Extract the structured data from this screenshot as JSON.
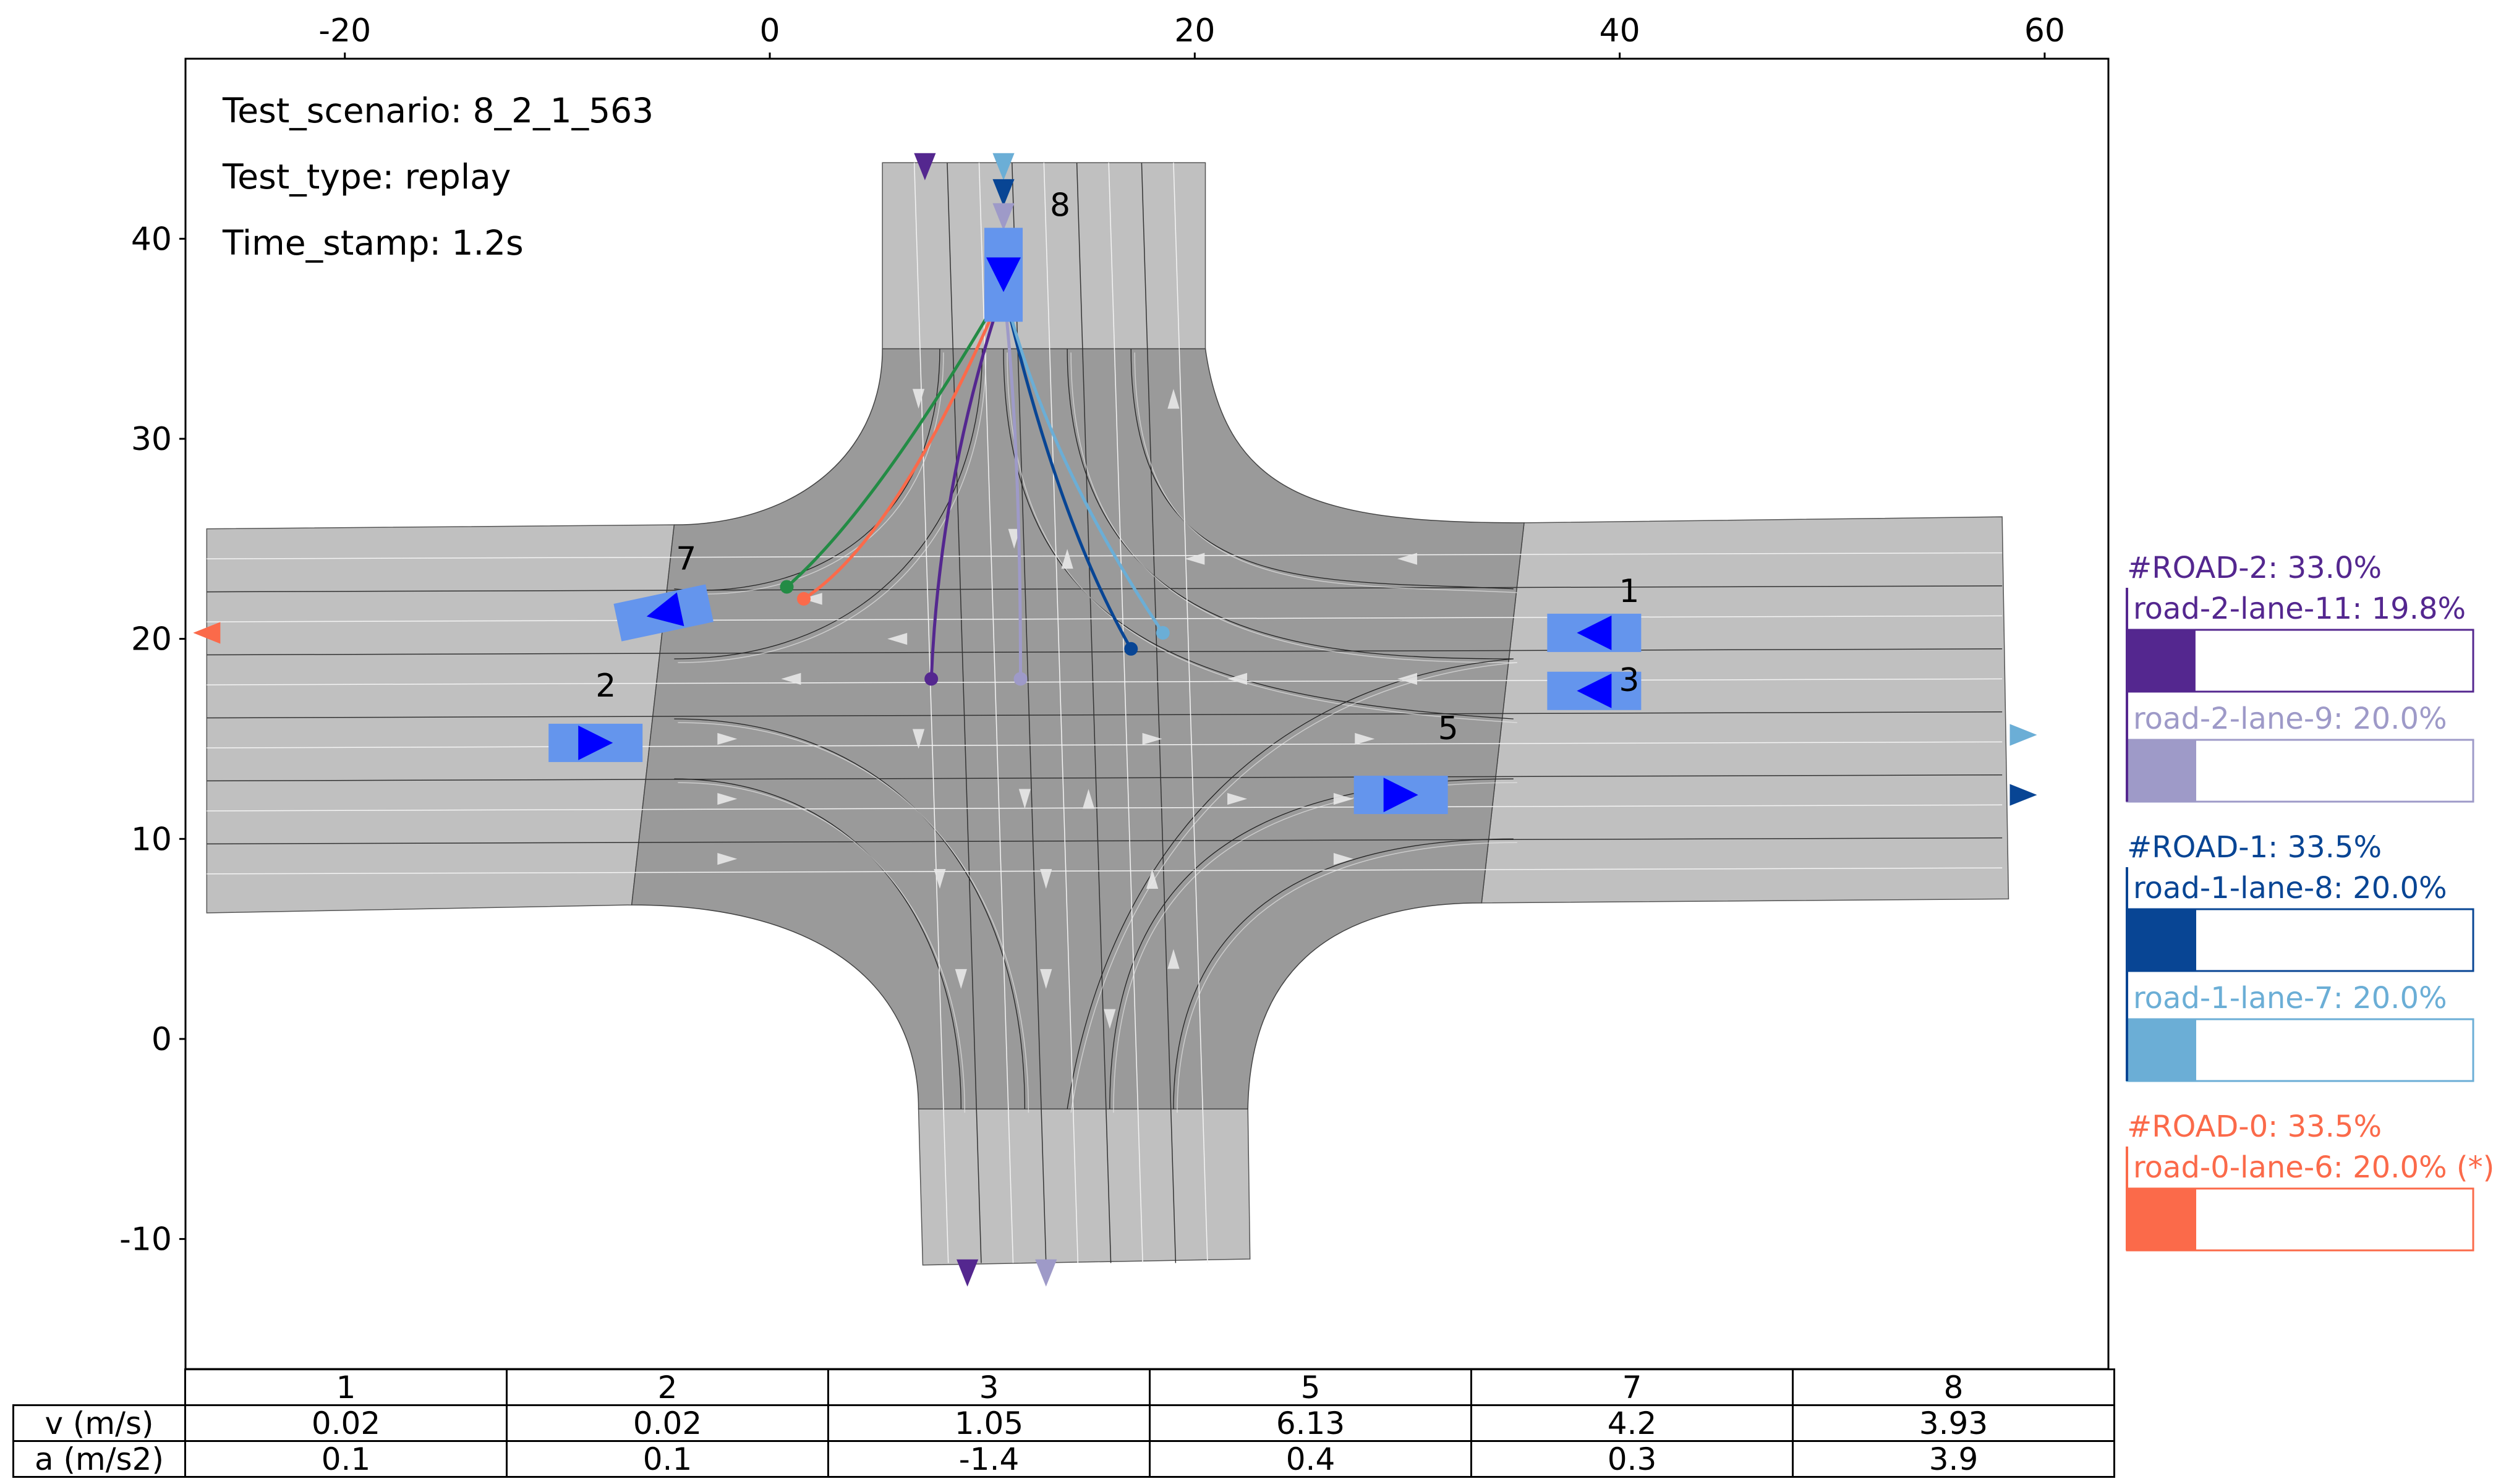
{
  "info": {
    "scenario": "Test_scenario: 8_2_1_563",
    "type": "Test_type: replay",
    "timestamp": "Time_stamp: 1.2s"
  },
  "chart_data": {
    "type": "scatter",
    "title": "",
    "xlabel": "",
    "ylabel": "",
    "xlim": [
      -27.5,
      63
    ],
    "ylim": [
      -16.5,
      49
    ],
    "x_ticks": [
      -20,
      0,
      20,
      40,
      60
    ],
    "y_ticks": [
      40,
      30,
      20,
      10,
      0,
      -10
    ],
    "x_tick_labels": [
      "-20",
      "0",
      "20",
      "40",
      "60"
    ],
    "y_tick_labels": [
      "40",
      "30",
      "20",
      "10",
      "0",
      "-10"
    ],
    "x_axis_position": "top",
    "grid": false,
    "vehicles": [
      {
        "id": "1",
        "x": 38.8,
        "y": 20.3,
        "heading": "west"
      },
      {
        "id": "2",
        "x": -8.2,
        "y": 14.8,
        "heading": "east"
      },
      {
        "id": "3",
        "x": 38.8,
        "y": 17.4,
        "heading": "west"
      },
      {
        "id": "5",
        "x": 29.7,
        "y": 12.2,
        "heading": "east"
      },
      {
        "id": "7",
        "x": -5.0,
        "y": 21.3,
        "heading": "west"
      },
      {
        "id": "8",
        "x": 11.0,
        "y": 38.2,
        "heading": "south"
      }
    ],
    "trajectories": [
      {
        "color": "#54278f",
        "points": [
          [
            11.0,
            37.5
          ],
          [
            8.0,
            28.0
          ],
          [
            7.6,
            18.0
          ]
        ]
      },
      {
        "color": "#9e9ac8",
        "points": [
          [
            11.0,
            37.5
          ],
          [
            11.8,
            30.0
          ],
          [
            11.8,
            18.0
          ]
        ]
      },
      {
        "color": "#084594",
        "points": [
          [
            11.0,
            37.5
          ],
          [
            13.5,
            26.0
          ],
          [
            17.0,
            19.5
          ]
        ]
      },
      {
        "color": "#6baed6",
        "points": [
          [
            11.0,
            37.5
          ],
          [
            13.0,
            29.0
          ],
          [
            18.5,
            20.3
          ]
        ]
      },
      {
        "color": "#fb6a4a",
        "points": [
          [
            11.0,
            37.5
          ],
          [
            6.0,
            25.0
          ],
          [
            1.6,
            22.0
          ]
        ]
      },
      {
        "color": "#238b45",
        "points": [
          [
            11.0,
            37.5
          ],
          [
            5.0,
            26.5
          ],
          [
            0.8,
            22.6
          ]
        ]
      }
    ]
  },
  "legend": {
    "groups": [
      {
        "header": "#ROAD-2: 33.0%",
        "color": "#54278f",
        "lanes": [
          {
            "label": "road-2-lane-11: 19.8%",
            "color": "#54278f",
            "value": 19.8
          },
          {
            "label": "road-2-lane-9: 20.0%",
            "color": "#9e9ac8",
            "value": 20.0
          }
        ]
      },
      {
        "header": "#ROAD-1: 33.5%",
        "color": "#084594",
        "lanes": [
          {
            "label": "road-1-lane-8: 20.0%",
            "color": "#084594",
            "value": 20.0
          },
          {
            "label": "road-1-lane-7: 20.0%",
            "color": "#6baed6",
            "value": 20.0
          }
        ]
      },
      {
        "header": "#ROAD-0: 33.5%",
        "color": "#fb6a4a",
        "lanes": [
          {
            "label": "road-0-lane-6: 20.0% (*)",
            "color": "#fb6a4a",
            "value": 20.0
          }
        ]
      }
    ]
  },
  "table": {
    "columns": [
      "1",
      "2",
      "3",
      "5",
      "7",
      "8"
    ],
    "rows": [
      {
        "label": "v (m/s)",
        "values": [
          "0.02",
          "0.02",
          "1.05",
          "6.13",
          "4.2",
          "3.93"
        ]
      },
      {
        "label": "a (m/s2)",
        "values": [
          "0.1",
          "0.1",
          "-1.4",
          "0.4",
          "0.3",
          "3.9"
        ]
      }
    ]
  },
  "colors": {
    "road_light": "#c0c0c0",
    "road_dark": "#9a9a9a",
    "vehicle": "#6495ed",
    "vehicle_arrow": "#0000ff"
  }
}
